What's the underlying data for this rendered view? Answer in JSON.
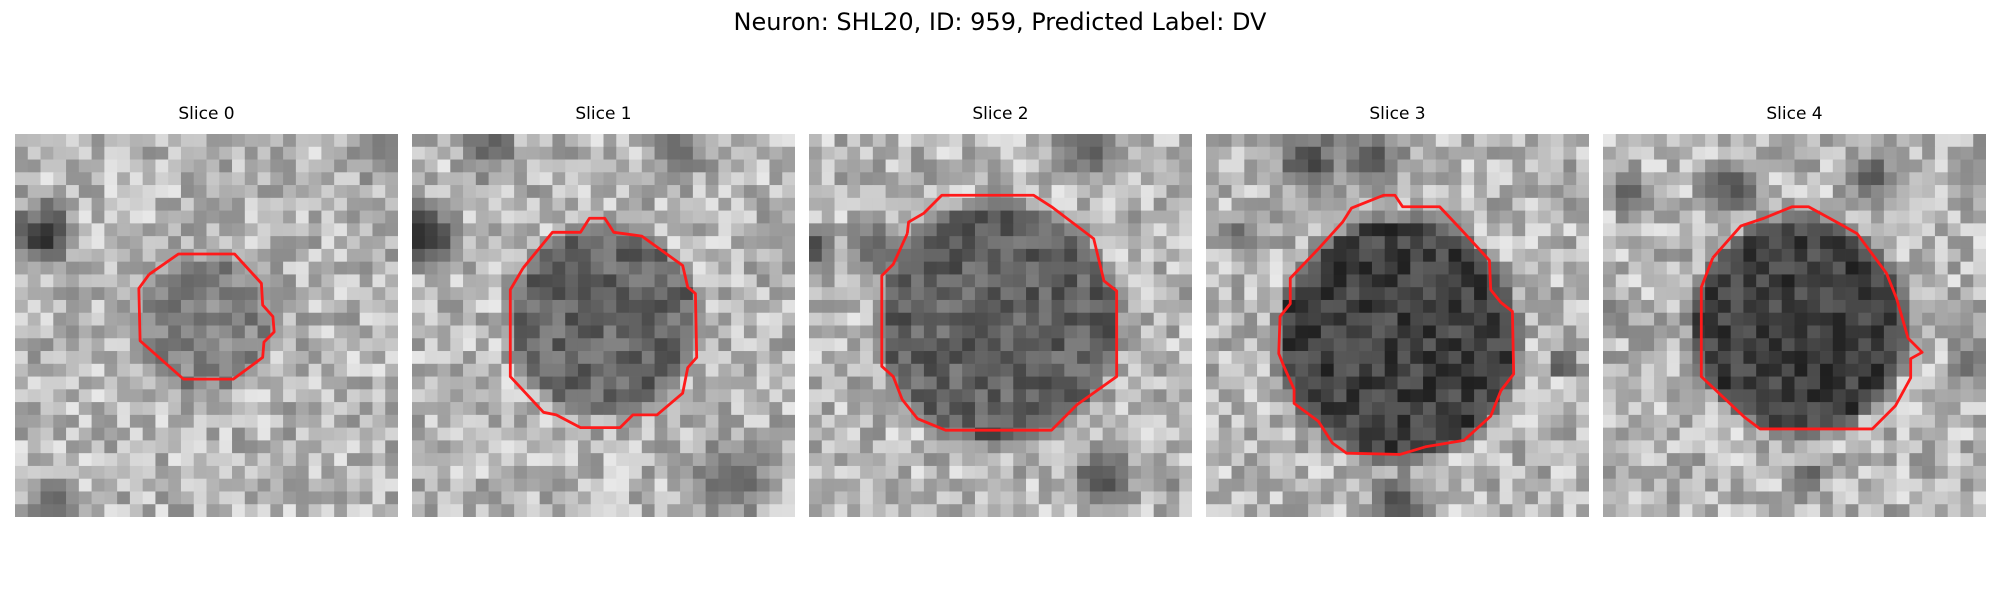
{
  "figure": {
    "title": "Neuron: SHL20, ID: 959, Predicted Label: DV"
  },
  "panels": [
    {
      "title": "Slice 0",
      "seed": 11,
      "dark_nucleus": 0.52
    },
    {
      "title": "Slice 1",
      "seed": 23,
      "dark_nucleus": 0.4
    },
    {
      "title": "Slice 2",
      "seed": 37,
      "dark_nucleus": 0.38
    },
    {
      "title": "Slice 3",
      "seed": 51,
      "dark_nucleus": 0.25
    },
    {
      "title": "Slice 4",
      "seed": 67,
      "dark_nucleus": 0.25
    }
  ],
  "colors": {
    "contour": "#ff1a1a"
  }
}
